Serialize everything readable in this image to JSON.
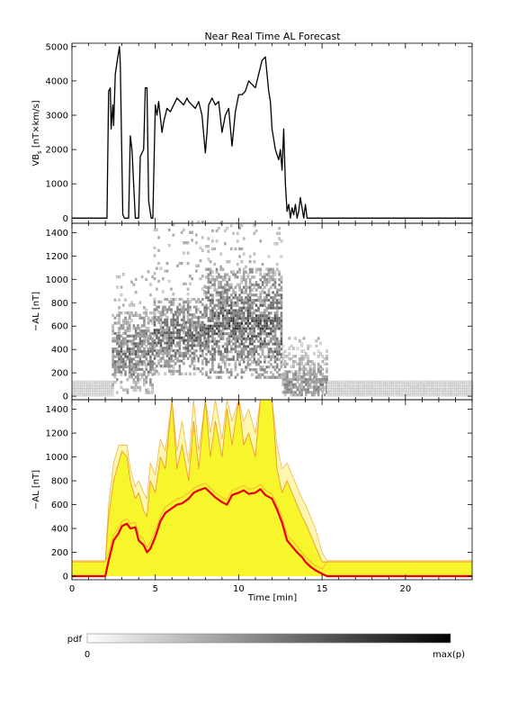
{
  "title": "Near Real Time AL Forecast",
  "colorbar": {
    "label": "pdf",
    "min_label": "0",
    "max_label": "max(p)"
  },
  "chart_data": [
    {
      "type": "line",
      "name": "vbs-panel",
      "ylabel_main": "VB",
      "ylabel_sub": "s",
      "ylabel_rest": " [nT×km/s]",
      "xlim": [
        0,
        24
      ],
      "ylim": [
        -150,
        5100
      ],
      "yticks": [
        0,
        1000,
        2000,
        3000,
        4000,
        5000
      ],
      "xticks": [
        0,
        5,
        10,
        15,
        20
      ],
      "x": [
        0,
        2.1,
        2.2,
        2.3,
        2.35,
        2.45,
        2.5,
        2.6,
        2.75,
        2.85,
        2.9,
        2.95,
        3.05,
        3.15,
        3.25,
        3.4,
        3.5,
        3.6,
        3.8,
        3.9,
        4.0,
        4.1,
        4.3,
        4.4,
        4.5,
        4.6,
        4.75,
        4.85,
        5.0,
        5.1,
        5.2,
        5.4,
        5.5,
        5.7,
        5.9,
        6.1,
        6.3,
        6.5,
        6.7,
        6.9,
        7.0,
        7.2,
        7.4,
        7.6,
        7.8,
        8.0,
        8.1,
        8.2,
        8.4,
        8.6,
        8.8,
        9.0,
        9.2,
        9.4,
        9.6,
        9.8,
        10.0,
        10.2,
        10.4,
        10.6,
        10.8,
        11.0,
        11.2,
        11.4,
        11.6,
        11.8,
        11.9,
        12.0,
        12.2,
        12.4,
        12.5,
        12.6,
        12.7,
        12.8,
        12.9,
        13.0,
        13.1,
        13.2,
        13.3,
        13.4,
        13.5,
        13.6,
        13.7,
        13.8,
        13.9,
        14.0,
        14.1,
        14.2,
        14.3,
        24
      ],
      "y": [
        0,
        0,
        3700,
        3800,
        2600,
        3300,
        2700,
        4200,
        4700,
        5000,
        4500,
        3000,
        100,
        0,
        0,
        0,
        2400,
        2000,
        0,
        0,
        0,
        1800,
        2000,
        3800,
        3800,
        500,
        0,
        0,
        3300,
        3000,
        3400,
        2500,
        2800,
        3200,
        3100,
        3300,
        3500,
        3400,
        3300,
        3500,
        3400,
        3300,
        3200,
        3400,
        3000,
        1900,
        2500,
        3300,
        3500,
        3300,
        3400,
        2500,
        3000,
        3200,
        2100,
        3100,
        3600,
        3600,
        3700,
        4000,
        3900,
        3800,
        4200,
        4600,
        4700,
        3700,
        3400,
        2600,
        2000,
        1700,
        2000,
        1400,
        2600,
        1000,
        200,
        400,
        0,
        300,
        100,
        400,
        0,
        200,
        600,
        300,
        0,
        400,
        0,
        0,
        0,
        0
      ],
      "series": [
        {
          "name": "VBs"
        }
      ]
    },
    {
      "type": "heatmap",
      "name": "pdf-panel",
      "ylabel": "−AL [nT]",
      "xlim": [
        0,
        24
      ],
      "ylim": [
        -30,
        1480
      ],
      "yticks": [
        0,
        200,
        400,
        600,
        800,
        1000,
        1200,
        1400
      ],
      "xticks": [
        0,
        5,
        10,
        15,
        20
      ],
      "segments": [
        {
          "x": [
            0,
            2.4
          ],
          "lo": 0,
          "hi": 130,
          "density": 0.15
        },
        {
          "x": [
            2.4,
            4.9
          ],
          "lo": 20,
          "hi": 720,
          "peak": 380,
          "density": 0.55,
          "sparse_top": 1060
        },
        {
          "x": [
            4.9,
            8.0
          ],
          "lo": 180,
          "hi": 820,
          "peak": 500,
          "density": 0.6,
          "sparse_top": 1480
        },
        {
          "x": [
            8.0,
            12.6
          ],
          "lo": 150,
          "hi": 1080,
          "peak": 600,
          "density": 0.65,
          "sparse_top": 1480
        },
        {
          "x": [
            12.6,
            15.3
          ],
          "lo": 0,
          "hi": 450,
          "peak": 100,
          "density": 0.45,
          "sparse_top": 500
        },
        {
          "x": [
            15.3,
            24
          ],
          "lo": 0,
          "hi": 130,
          "density": 0.15
        }
      ]
    },
    {
      "type": "area",
      "name": "forecast-panel",
      "ylabel": "−AL [nT]",
      "xlabel": "Time [min]",
      "xlim": [
        0,
        24
      ],
      "ylim": [
        -30,
        1480
      ],
      "yticks": [
        0,
        200,
        400,
        600,
        800,
        1000,
        1200,
        1400
      ],
      "xticks": [
        0,
        5,
        10,
        15,
        20
      ],
      "x": [
        0,
        1.6,
        2.0,
        2.2,
        2.5,
        2.8,
        3.0,
        3.3,
        3.5,
        3.8,
        4.0,
        4.3,
        4.5,
        4.7,
        5.0,
        5.3,
        5.6,
        6.0,
        6.3,
        6.6,
        7.0,
        7.3,
        7.6,
        8.0,
        8.3,
        8.6,
        9.0,
        9.3,
        9.6,
        10.0,
        10.3,
        10.6,
        11.0,
        11.3,
        11.6,
        12.0,
        12.3,
        12.6,
        12.9,
        13.2,
        13.5,
        13.8,
        14.0,
        14.3,
        14.6,
        15.0,
        15.3,
        15.6,
        24
      ],
      "median": [
        0,
        0,
        0,
        130,
        300,
        360,
        420,
        440,
        400,
        410,
        300,
        260,
        200,
        230,
        330,
        460,
        530,
        570,
        600,
        610,
        650,
        700,
        720,
        740,
        700,
        660,
        620,
        600,
        680,
        700,
        720,
        690,
        700,
        730,
        680,
        650,
        560,
        450,
        300,
        250,
        200,
        160,
        120,
        80,
        50,
        20,
        0,
        0,
        0
      ],
      "lower": [
        120,
        120,
        120,
        200,
        350,
        400,
        460,
        480,
        440,
        450,
        350,
        310,
        240,
        280,
        380,
        500,
        580,
        620,
        650,
        660,
        700,
        740,
        760,
        780,
        740,
        700,
        660,
        640,
        720,
        740,
        760,
        730,
        740,
        770,
        720,
        690,
        600,
        500,
        350,
        300,
        250,
        200,
        160,
        120,
        90,
        60,
        120,
        120,
        120
      ],
      "upper": [
        120,
        120,
        120,
        500,
        800,
        950,
        1050,
        1000,
        800,
        650,
        700,
        550,
        500,
        800,
        700,
        1000,
        900,
        1480,
        900,
        1100,
        800,
        1300,
        900,
        1480,
        1000,
        1300,
        1000,
        1400,
        1100,
        1480,
        1100,
        1200,
        1000,
        1480,
        1480,
        1480,
        900,
        700,
        800,
        700,
        600,
        500,
        450,
        350,
        250,
        120,
        120,
        120,
        120
      ],
      "outer": [
        130,
        130,
        130,
        600,
        950,
        1100,
        1100,
        1100,
        900,
        750,
        800,
        700,
        650,
        950,
        850,
        1150,
        1050,
        1480,
        1050,
        1300,
        950,
        1480,
        1050,
        1480,
        1200,
        1480,
        1150,
        1480,
        1300,
        1480,
        1300,
        1400,
        1200,
        1480,
        1480,
        1480,
        1100,
        900,
        950,
        850,
        750,
        650,
        600,
        500,
        400,
        200,
        130,
        130,
        130
      ],
      "series": [
        {
          "name": "median"
        }
      ]
    }
  ]
}
